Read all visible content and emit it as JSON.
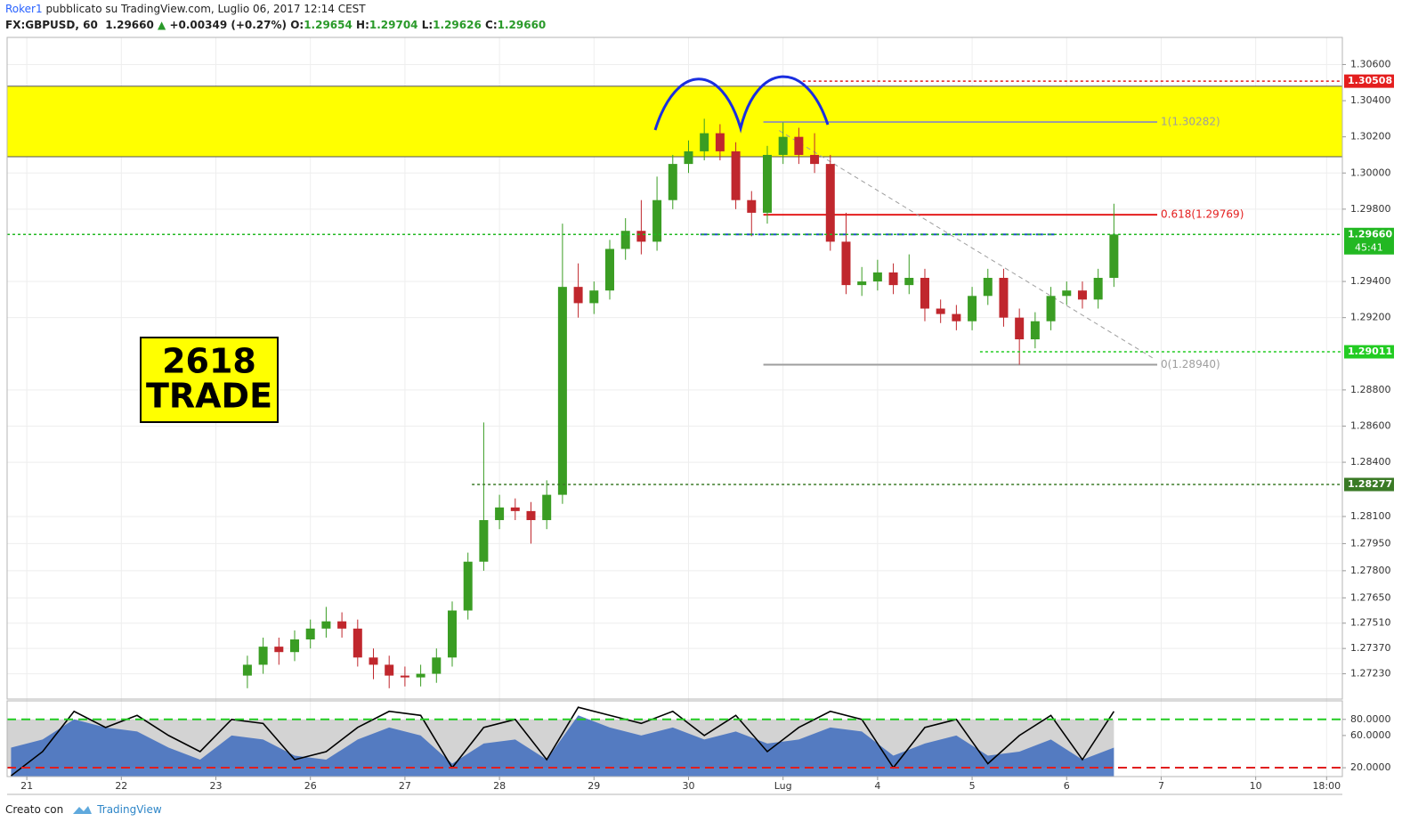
{
  "header": {
    "author": "Roker1",
    "published": " pubblicato su TradingView.com, Luglio 06, 2017 12:14 CEST",
    "symbol": "FX:GBPUSD, 60",
    "last": "1.29660",
    "change": "+0.00349 (+0.27%)",
    "o_label": "O:",
    "o": "1.29654",
    "h_label": "H:",
    "h": "1.29704",
    "l_label": "L:",
    "l": "1.29626",
    "c_label": "C:",
    "c": "1.29660"
  },
  "footer": {
    "text": "Creato con",
    "brand": "TradingView"
  },
  "chart_data": [
    {
      "type": "candlestick",
      "up_color": "#3a9d23",
      "down_color": "#c0272d",
      "grid": true,
      "xlim": [
        -5,
        334
      ],
      "xticks": [
        {
          "value": 0,
          "label": "21"
        },
        {
          "value": 24,
          "label": "22"
        },
        {
          "value": 48,
          "label": "23"
        },
        {
          "value": 72,
          "label": "26"
        },
        {
          "value": 96,
          "label": "27"
        },
        {
          "value": 120,
          "label": "28"
        },
        {
          "value": 144,
          "label": "29"
        },
        {
          "value": 168,
          "label": "30"
        },
        {
          "value": 192,
          "label": "Lug"
        },
        {
          "value": 216,
          "label": "4"
        },
        {
          "value": 240,
          "label": "5"
        },
        {
          "value": 264,
          "label": "6"
        },
        {
          "value": 288,
          "label": "7"
        },
        {
          "value": 312,
          "label": "10"
        },
        {
          "value": 330,
          "label": "18:00"
        }
      ],
      "ylim": [
        1.2709,
        1.3075
      ],
      "yticks": [
        {
          "value": 1.306,
          "label": "1.30600"
        },
        {
          "value": 1.304,
          "label": "1.30400"
        },
        {
          "value": 1.302,
          "label": "1.30200"
        },
        {
          "value": 1.3,
          "label": "1.30000"
        },
        {
          "value": 1.298,
          "label": "1.29800"
        },
        {
          "value": 1.294,
          "label": "1.29400"
        },
        {
          "value": 1.292,
          "label": "1.29200"
        },
        {
          "value": 1.288,
          "label": "1.28800"
        },
        {
          "value": 1.286,
          "label": "1.28600"
        },
        {
          "value": 1.284,
          "label": "1.28400"
        },
        {
          "value": 1.281,
          "label": "1.28100"
        },
        {
          "value": 1.2795,
          "label": "1.27950"
        },
        {
          "value": 1.278,
          "label": "1.27800"
        },
        {
          "value": 1.2765,
          "label": "1.27650"
        },
        {
          "value": 1.2751,
          "label": "1.27510"
        },
        {
          "value": 1.2737,
          "label": "1.27370"
        },
        {
          "value": 1.2723,
          "label": "1.27230"
        }
      ],
      "x": [
        56,
        60,
        64,
        68,
        72,
        76,
        80,
        84,
        88,
        92,
        96,
        100,
        104,
        108,
        112,
        116,
        120,
        124,
        128,
        132,
        136,
        140,
        144,
        148,
        152,
        156,
        160,
        164,
        168,
        172,
        176,
        180,
        184,
        188,
        192,
        196,
        200,
        204,
        208,
        212,
        216,
        220,
        224,
        228,
        232,
        236,
        240,
        244,
        248,
        252,
        256,
        260,
        264,
        268,
        272,
        276
      ],
      "open": [
        1.2722,
        1.2728,
        1.2738,
        1.2735,
        1.2742,
        1.2748,
        1.2752,
        1.2748,
        1.2732,
        1.2728,
        1.2722,
        1.2721,
        1.2723,
        1.2732,
        1.2758,
        1.2785,
        1.2808,
        1.2815,
        1.2813,
        1.2808,
        1.2822,
        1.2937,
        1.2928,
        1.2935,
        1.2958,
        1.2968,
        1.2962,
        1.2985,
        1.3005,
        1.3012,
        1.3022,
        1.3012,
        1.2985,
        1.2978,
        1.301,
        1.302,
        1.301,
        1.3005,
        1.2962,
        1.2938,
        1.294,
        1.2945,
        1.2938,
        1.2942,
        1.2925,
        1.2922,
        1.2918,
        1.2932,
        1.2942,
        1.292,
        1.2908,
        1.2918,
        1.2932,
        1.2935,
        1.293,
        1.2942
      ],
      "high": [
        1.2733,
        1.2743,
        1.2743,
        1.2747,
        1.2753,
        1.276,
        1.2757,
        1.2753,
        1.2737,
        1.2733,
        1.2727,
        1.2728,
        1.2737,
        1.2763,
        1.279,
        1.2862,
        1.2822,
        1.282,
        1.2818,
        1.283,
        1.2972,
        1.295,
        1.294,
        1.2963,
        1.2975,
        1.2985,
        1.2998,
        1.301,
        1.3018,
        1.303,
        1.3027,
        1.3017,
        1.299,
        1.3015,
        1.3028,
        1.3025,
        1.3022,
        1.301,
        1.2978,
        1.2948,
        1.2952,
        1.295,
        1.2955,
        1.2947,
        1.293,
        1.2927,
        1.2937,
        1.2947,
        1.2947,
        1.2925,
        1.2923,
        1.2937,
        1.294,
        1.294,
        1.2947,
        1.2983
      ],
      "low": [
        1.2715,
        1.2723,
        1.2728,
        1.273,
        1.2737,
        1.2743,
        1.2743,
        1.2727,
        1.272,
        1.2715,
        1.2716,
        1.2716,
        1.2718,
        1.2727,
        1.2753,
        1.278,
        1.2803,
        1.2808,
        1.2795,
        1.2803,
        1.2817,
        1.292,
        1.2922,
        1.293,
        1.2952,
        1.2955,
        1.2957,
        1.298,
        1.3,
        1.3007,
        1.3007,
        1.298,
        1.2965,
        1.2972,
        1.3005,
        1.3005,
        1.3,
        1.2957,
        1.2933,
        1.2932,
        1.2935,
        1.2933,
        1.2933,
        1.2918,
        1.2917,
        1.2913,
        1.2913,
        1.2927,
        1.2915,
        1.2894,
        1.2903,
        1.2913,
        1.2927,
        1.2925,
        1.2925,
        1.2937
      ],
      "close": [
        1.2728,
        1.2738,
        1.2735,
        1.2742,
        1.2748,
        1.2752,
        1.2748,
        1.2732,
        1.2728,
        1.2722,
        1.2721,
        1.2723,
        1.2732,
        1.2758,
        1.2785,
        1.2808,
        1.2815,
        1.2813,
        1.2808,
        1.2822,
        1.2937,
        1.2928,
        1.2935,
        1.2958,
        1.2968,
        1.2962,
        1.2985,
        1.3005,
        1.3012,
        1.3022,
        1.3012,
        1.2985,
        1.2978,
        1.301,
        1.302,
        1.301,
        1.3005,
        1.2962,
        1.2938,
        1.294,
        1.2945,
        1.2938,
        1.2942,
        1.2925,
        1.2922,
        1.2918,
        1.2932,
        1.2942,
        1.292,
        1.2908,
        1.2918,
        1.2932,
        1.2935,
        1.293,
        1.2942,
        1.2966
      ],
      "zone": {
        "values": [
          1.3009,
          1.3048
        ],
        "color": "#ffff00"
      },
      "levels": [
        {
          "value": 1.30508,
          "x": [
            197,
            334
          ],
          "color": "#e41e1e",
          "style": "dotted"
        },
        {
          "value": 1.2966,
          "label": "1.29660",
          "x": [
            -5,
            334
          ],
          "color": "#22b822",
          "style": "dotted",
          "timer": "45:41"
        },
        {
          "value": 1.29011,
          "x": [
            242,
            334
          ],
          "color": "#22cc22",
          "style": "dotted"
        },
        {
          "value": 1.28277,
          "x": [
            113,
            334
          ],
          "color": "#3a7a26",
          "style": "dotted"
        }
      ],
      "fib": [
        {
          "label": "1(1.30282)",
          "value": 1.30282,
          "x": [
            187,
            287
          ],
          "color": "#9e9e9e"
        },
        {
          "label": "0.618(1.29769)",
          "value": 1.29769,
          "x": [
            187,
            287
          ],
          "color": "#e41e1e"
        },
        {
          "label": "0(1.28940)",
          "value": 1.2894,
          "x": [
            187,
            287
          ],
          "color": "#9e9e9e"
        }
      ],
      "hline": {
        "value": 1.2966,
        "x": [
          171,
          262
        ],
        "color": "#1e4fc8"
      },
      "trendline": {
        "x": [
          191,
          286
        ],
        "values": [
          1.30235,
          1.28975
        ],
        "color": "#9e9e9e"
      },
      "annotation": [
        "2618",
        "TRADE"
      ]
    },
    {
      "type": "line",
      "x": [
        -4,
        4,
        12,
        20,
        28,
        36,
        44,
        52,
        60,
        68,
        76,
        84,
        92,
        100,
        108,
        116,
        124,
        132,
        140,
        148,
        156,
        164,
        172,
        180,
        188,
        196,
        204,
        212,
        220,
        228,
        236,
        244,
        252,
        260,
        268,
        276
      ],
      "ylim": [
        9,
        103
      ],
      "yticks": [
        {
          "value": 80,
          "label": "80.0000"
        },
        {
          "value": 60,
          "label": "60.0000"
        },
        {
          "value": 20,
          "label": "20.0000"
        }
      ],
      "band": {
        "values": [
          20,
          80
        ],
        "color": "#d3d3d3"
      },
      "levels": [
        {
          "value": 80,
          "color": "#22cc22"
        },
        {
          "value": 20,
          "color": "#e01e1e"
        }
      ],
      "series": [
        {
          "color": "#3d6bbd",
          "fill": true,
          "values": [
            45,
            55,
            80,
            70,
            65,
            45,
            30,
            60,
            55,
            35,
            30,
            55,
            70,
            60,
            25,
            50,
            55,
            30,
            85,
            70,
            60,
            70,
            55,
            65,
            50,
            55,
            70,
            65,
            35,
            50,
            60,
            35,
            40,
            55,
            30,
            45
          ]
        },
        {
          "color": "#000000",
          "fill": false,
          "values": [
            10,
            40,
            90,
            70,
            85,
            60,
            40,
            80,
            75,
            30,
            40,
            70,
            90,
            85,
            20,
            70,
            80,
            30,
            95,
            85,
            75,
            90,
            60,
            85,
            40,
            70,
            90,
            80,
            20,
            70,
            80,
            25,
            60,
            85,
            30,
            90
          ]
        }
      ]
    }
  ]
}
